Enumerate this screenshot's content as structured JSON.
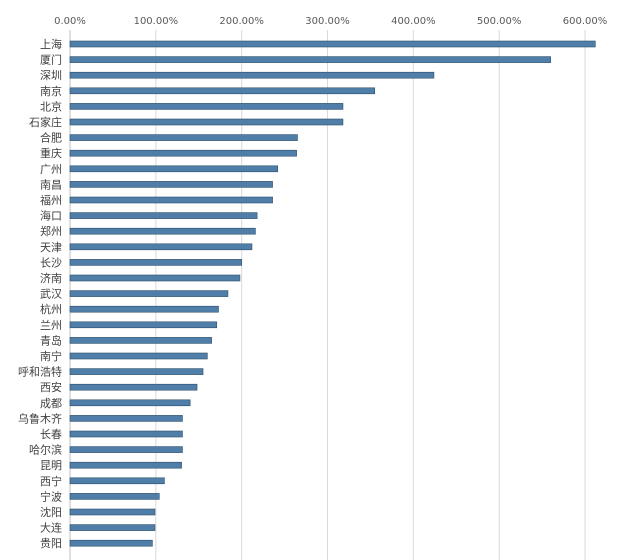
{
  "chart_data": {
    "type": "bar",
    "orientation": "horizontal",
    "title": "",
    "xlabel": "",
    "ylabel": "",
    "xlim": [
      0,
      600
    ],
    "x_ticks": [
      "0.00%",
      "100.00%",
      "200.00%",
      "300.00%",
      "400.00%",
      "500.00%",
      "600.00%"
    ],
    "x_tick_values": [
      0,
      100,
      200,
      300,
      400,
      500,
      600
    ],
    "grid": true,
    "legend": "none",
    "bar_color": "#4f7fa8",
    "categories": [
      "上海",
      "厦门",
      "深圳",
      "南京",
      "北京",
      "石家庄",
      "合肥",
      "重庆",
      "广州",
      "南昌",
      "福州",
      "海口",
      "郑州",
      "天津",
      "长沙",
      "济南",
      "武汉",
      "杭州",
      "兰州",
      "青岛",
      "南宁",
      "呼和浩特",
      "西安",
      "成都",
      "乌鲁木齐",
      "长春",
      "哈尔滨",
      "昆明",
      "西宁",
      "宁波",
      "沈阳",
      "大连",
      "贵阳"
    ],
    "values": [
      612,
      560,
      424,
      355,
      318,
      318,
      265,
      264,
      242,
      236,
      236,
      218,
      216,
      212,
      200,
      198,
      184,
      173,
      171,
      165,
      160,
      155,
      148,
      140,
      131,
      131,
      131,
      130,
      110,
      104,
      99,
      99,
      96
    ]
  }
}
